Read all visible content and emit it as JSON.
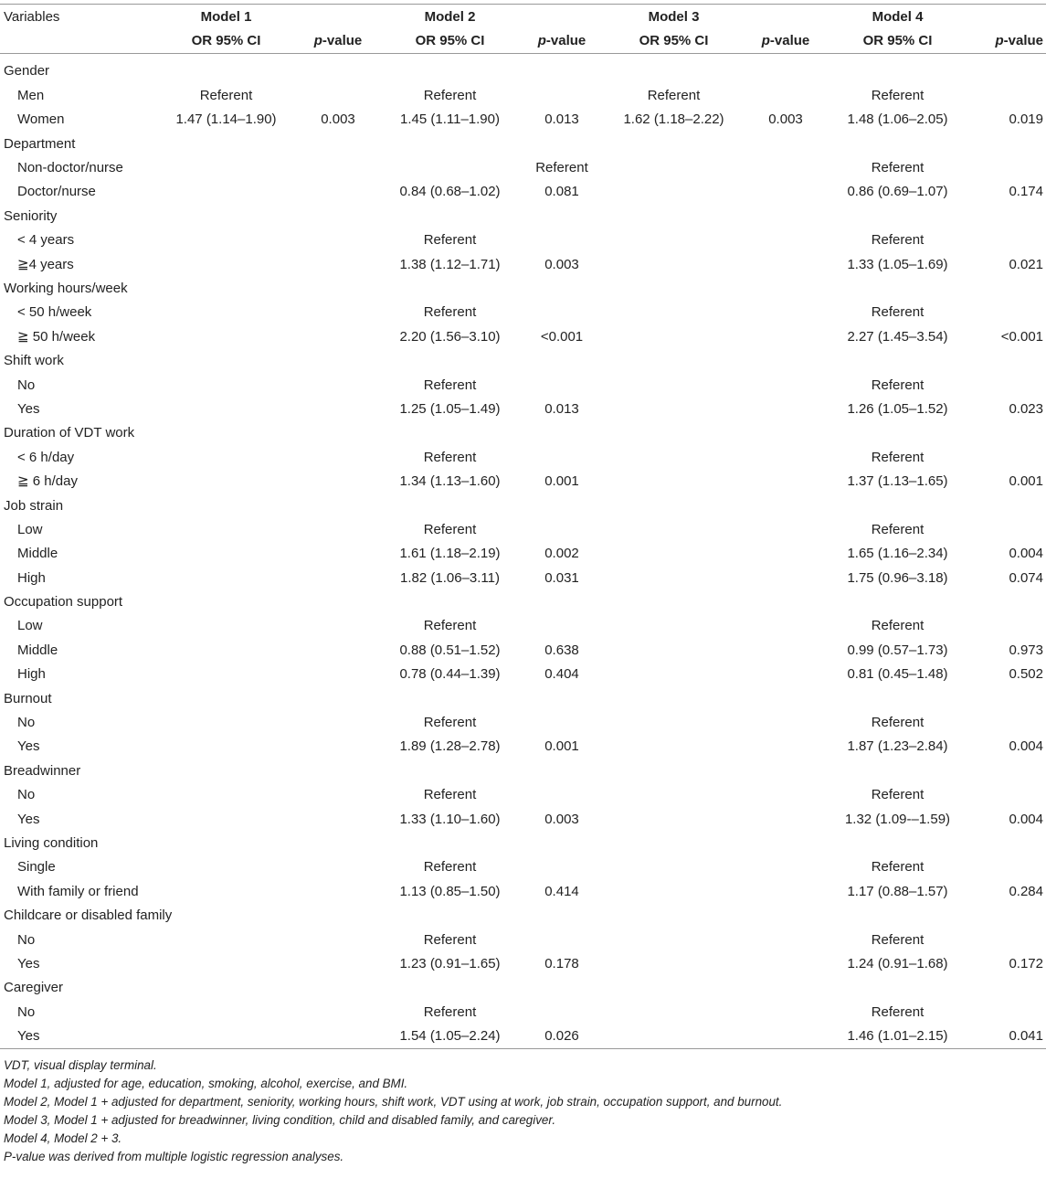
{
  "header": {
    "variables": "Variables",
    "models": [
      "Model 1",
      "Model 2",
      "Model 3",
      "Model 4"
    ],
    "or_label": "OR 95% CI",
    "p_prefix": "p",
    "p_suffix": "-value"
  },
  "rows": [
    {
      "label": "Gender",
      "level": 0,
      "m1or": "",
      "m1p": "",
      "m2or": "",
      "m2p": "",
      "m3or": "",
      "m3p": "",
      "m4or": "",
      "m4p": ""
    },
    {
      "label": "Men",
      "level": 1,
      "m1or": "Referent",
      "m1p": "",
      "m2or": "Referent",
      "m2p": "",
      "m3or": "Referent",
      "m3p": "",
      "m4or": "Referent",
      "m4p": ""
    },
    {
      "label": "Women",
      "level": 1,
      "m1or": "1.47 (1.14–1.90)",
      "m1p": "0.003",
      "m2or": "1.45 (1.11–1.90)",
      "m2p": "0.013",
      "m3or": "1.62 (1.18–2.22)",
      "m3p": "0.003",
      "m4or": "1.48 (1.06–2.05)",
      "m4p": "0.019"
    },
    {
      "label": "Department",
      "level": 0,
      "m1or": "",
      "m1p": "",
      "m2or": "",
      "m2p": "",
      "m3or": "",
      "m3p": "",
      "m4or": "",
      "m4p": ""
    },
    {
      "label": "Non-doctor/nurse",
      "level": 1,
      "m1or": "",
      "m1p": "",
      "m2or": "",
      "m2p": "Referent",
      "m3or": "",
      "m3p": "",
      "m4or": "Referent",
      "m4p": ""
    },
    {
      "label": "Doctor/nurse",
      "level": 1,
      "m1or": "",
      "m1p": "",
      "m2or": "0.84 (0.68–1.02)",
      "m2p": "0.081",
      "m3or": "",
      "m3p": "",
      "m4or": "0.86 (0.69–1.07)",
      "m4p": "0.174"
    },
    {
      "label": "Seniority",
      "level": 0,
      "m1or": "",
      "m1p": "",
      "m2or": "",
      "m2p": "",
      "m3or": "",
      "m3p": "",
      "m4or": "",
      "m4p": ""
    },
    {
      "label": "< 4 years",
      "level": 1,
      "m1or": "",
      "m1p": "",
      "m2or": "Referent",
      "m2p": "",
      "m3or": "",
      "m3p": "",
      "m4or": "Referent",
      "m4p": ""
    },
    {
      "label": "≧4 years",
      "level": 1,
      "m1or": "",
      "m1p": "",
      "m2or": "1.38 (1.12–1.71)",
      "m2p": "0.003",
      "m3or": "",
      "m3p": "",
      "m4or": "1.33 (1.05–1.69)",
      "m4p": "0.021"
    },
    {
      "label": "Working hours/week",
      "level": 0,
      "m1or": "",
      "m1p": "",
      "m2or": "",
      "m2p": "",
      "m3or": "",
      "m3p": "",
      "m4or": "",
      "m4p": ""
    },
    {
      "label": "< 50 h/week",
      "level": 1,
      "m1or": "",
      "m1p": "",
      "m2or": "Referent",
      "m2p": "",
      "m3or": "",
      "m3p": "",
      "m4or": "Referent",
      "m4p": ""
    },
    {
      "label": "≧ 50 h/week",
      "level": 1,
      "m1or": "",
      "m1p": "",
      "m2or": "2.20 (1.56–3.10)",
      "m2p": "<0.001",
      "m3or": "",
      "m3p": "",
      "m4or": "2.27 (1.45–3.54)",
      "m4p": "<0.001"
    },
    {
      "label": "Shift work",
      "level": 0,
      "m1or": "",
      "m1p": "",
      "m2or": "",
      "m2p": "",
      "m3or": "",
      "m3p": "",
      "m4or": "",
      "m4p": ""
    },
    {
      "label": "No",
      "level": 1,
      "m1or": "",
      "m1p": "",
      "m2or": "Referent",
      "m2p": "",
      "m3or": "",
      "m3p": "",
      "m4or": "Referent",
      "m4p": ""
    },
    {
      "label": "Yes",
      "level": 1,
      "m1or": "",
      "m1p": "",
      "m2or": "1.25 (1.05–1.49)",
      "m2p": "0.013",
      "m3or": "",
      "m3p": "",
      "m4or": "1.26 (1.05–1.52)",
      "m4p": "0.023"
    },
    {
      "label": "Duration of VDT work",
      "level": 0,
      "m1or": "",
      "m1p": "",
      "m2or": "",
      "m2p": "",
      "m3or": "",
      "m3p": "",
      "m4or": "",
      "m4p": ""
    },
    {
      "label": "< 6 h/day",
      "level": 1,
      "m1or": "",
      "m1p": "",
      "m2or": "Referent",
      "m2p": "",
      "m3or": "",
      "m3p": "",
      "m4or": "Referent",
      "m4p": ""
    },
    {
      "label": "≧ 6 h/day",
      "level": 1,
      "m1or": "",
      "m1p": "",
      "m2or": "1.34 (1.13–1.60)",
      "m2p": "0.001",
      "m3or": "",
      "m3p": "",
      "m4or": "1.37 (1.13–1.65)",
      "m4p": "0.001"
    },
    {
      "label": "Job strain",
      "level": 0,
      "m1or": "",
      "m1p": "",
      "m2or": "",
      "m2p": "",
      "m3or": "",
      "m3p": "",
      "m4or": "",
      "m4p": ""
    },
    {
      "label": "Low",
      "level": 1,
      "m1or": "",
      "m1p": "",
      "m2or": "Referent",
      "m2p": "",
      "m3or": "",
      "m3p": "",
      "m4or": "Referent",
      "m4p": ""
    },
    {
      "label": "Middle",
      "level": 1,
      "m1or": "",
      "m1p": "",
      "m2or": "1.61 (1.18–2.19)",
      "m2p": "0.002",
      "m3or": "",
      "m3p": "",
      "m4or": "1.65 (1.16–2.34)",
      "m4p": "0.004"
    },
    {
      "label": "High",
      "level": 1,
      "m1or": "",
      "m1p": "",
      "m2or": "1.82 (1.06–3.11)",
      "m2p": "0.031",
      "m3or": "",
      "m3p": "",
      "m4or": "1.75 (0.96–3.18)",
      "m4p": "0.074"
    },
    {
      "label": "Occupation support",
      "level": 0,
      "m1or": "",
      "m1p": "",
      "m2or": "",
      "m2p": "",
      "m3or": "",
      "m3p": "",
      "m4or": "",
      "m4p": ""
    },
    {
      "label": "Low",
      "level": 1,
      "m1or": "",
      "m1p": "",
      "m2or": "Referent",
      "m2p": "",
      "m3or": "",
      "m3p": "",
      "m4or": "Referent",
      "m4p": ""
    },
    {
      "label": "Middle",
      "level": 1,
      "m1or": "",
      "m1p": "",
      "m2or": "0.88 (0.51–1.52)",
      "m2p": "0.638",
      "m3or": "",
      "m3p": "",
      "m4or": "0.99 (0.57–1.73)",
      "m4p": "0.973"
    },
    {
      "label": "High",
      "level": 1,
      "m1or": "",
      "m1p": "",
      "m2or": "0.78 (0.44–1.39)",
      "m2p": "0.404",
      "m3or": "",
      "m3p": "",
      "m4or": "0.81 (0.45–1.48)",
      "m4p": "0.502"
    },
    {
      "label": "Burnout",
      "level": 0,
      "m1or": "",
      "m1p": "",
      "m2or": "",
      "m2p": "",
      "m3or": "",
      "m3p": "",
      "m4or": "",
      "m4p": ""
    },
    {
      "label": "No",
      "level": 1,
      "m1or": "",
      "m1p": "",
      "m2or": "Referent",
      "m2p": "",
      "m3or": "",
      "m3p": "",
      "m4or": "Referent",
      "m4p": ""
    },
    {
      "label": "Yes",
      "level": 1,
      "m1or": "",
      "m1p": "",
      "m2or": "1.89 (1.28–2.78)",
      "m2p": "0.001",
      "m3or": "",
      "m3p": "",
      "m4or": "1.87 (1.23–2.84)",
      "m4p": "0.004"
    },
    {
      "label": "Breadwinner",
      "level": 0,
      "m1or": "",
      "m1p": "",
      "m2or": "",
      "m2p": "",
      "m3or": "",
      "m3p": "",
      "m4or": "",
      "m4p": ""
    },
    {
      "label": "No",
      "level": 1,
      "m1or": "",
      "m1p": "",
      "m2or": "Referent",
      "m2p": "",
      "m3or": "",
      "m3p": "",
      "m4or": "Referent",
      "m4p": ""
    },
    {
      "label": "Yes",
      "level": 1,
      "m1or": "",
      "m1p": "",
      "m2or": "1.33 (1.10–1.60)",
      "m2p": "0.003",
      "m3or": "",
      "m3p": "",
      "m4or": "1.32 (1.09-–1.59)",
      "m4p": "0.004"
    },
    {
      "label": "Living condition",
      "level": 0,
      "m1or": "",
      "m1p": "",
      "m2or": "",
      "m2p": "",
      "m3or": "",
      "m3p": "",
      "m4or": "",
      "m4p": ""
    },
    {
      "label": "Single",
      "level": 1,
      "m1or": "",
      "m1p": "",
      "m2or": "Referent",
      "m2p": "",
      "m3or": "",
      "m3p": "",
      "m4or": "Referent",
      "m4p": ""
    },
    {
      "label": "With family or friend",
      "level": 1,
      "m1or": "",
      "m1p": "",
      "m2or": "1.13 (0.85–1.50)",
      "m2p": "0.414",
      "m3or": "",
      "m3p": "",
      "m4or": "1.17 (0.88–1.57)",
      "m4p": "0.284"
    },
    {
      "label": "Childcare or disabled family",
      "level": 0,
      "m1or": "",
      "m1p": "",
      "m2or": "",
      "m2p": "",
      "m3or": "",
      "m3p": "",
      "m4or": "",
      "m4p": ""
    },
    {
      "label": "No",
      "level": 1,
      "m1or": "",
      "m1p": "",
      "m2or": "Referent",
      "m2p": "",
      "m3or": "",
      "m3p": "",
      "m4or": "Referent",
      "m4p": ""
    },
    {
      "label": "Yes",
      "level": 1,
      "m1or": "",
      "m1p": "",
      "m2or": "1.23 (0.91–1.65)",
      "m2p": "0.178",
      "m3or": "",
      "m3p": "",
      "m4or": "1.24 (0.91–1.68)",
      "m4p": "0.172"
    },
    {
      "label": "Caregiver",
      "level": 0,
      "m1or": "",
      "m1p": "",
      "m2or": "",
      "m2p": "",
      "m3or": "",
      "m3p": "",
      "m4or": "",
      "m4p": ""
    },
    {
      "label": "No",
      "level": 1,
      "m1or": "",
      "m1p": "",
      "m2or": "Referent",
      "m2p": "",
      "m3or": "",
      "m3p": "",
      "m4or": "Referent",
      "m4p": ""
    },
    {
      "label": "Yes",
      "level": 1,
      "m1or": "",
      "m1p": "",
      "m2or": "1.54 (1.05–2.24)",
      "m2p": "0.026",
      "m3or": "",
      "m3p": "",
      "m4or": "1.46 (1.01–2.15)",
      "m4p": "0.041"
    }
  ],
  "footnotes": [
    "VDT, visual display terminal.",
    "Model 1, adjusted for age, education, smoking, alcohol, exercise, and BMI.",
    "Model 2, Model 1 + adjusted for department, seniority, working hours, shift work, VDT using at work, job strain, occupation support, and burnout.",
    "Model 3, Model 1 + adjusted for breadwinner, living condition, child and disabled family, and caregiver.",
    "Model 4, Model 2 + 3.",
    "P-value was derived from multiple logistic regression analyses."
  ]
}
